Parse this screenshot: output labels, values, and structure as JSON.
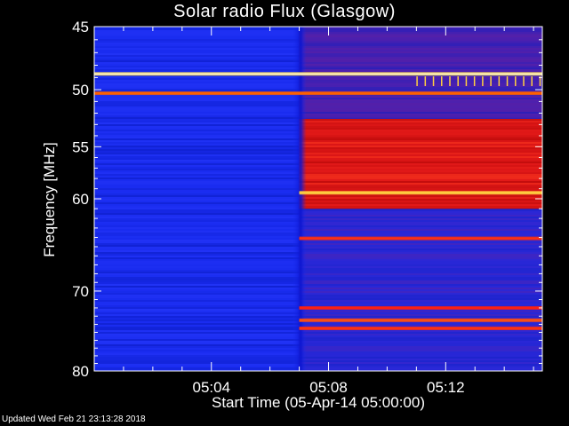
{
  "chart_data": {
    "type": "heatmap",
    "title": "Solar radio Flux (Glasgow)",
    "xlabel": "Start Time (05-Apr-14 05:00:00)",
    "ylabel": "Frequency [MHz]",
    "x_unit": "minutes after 05:00",
    "xlim": [
      0.0,
      15.3
    ],
    "x_ticks": [
      {
        "value": 4,
        "label": "05:04"
      },
      {
        "value": 8,
        "label": "05:08"
      },
      {
        "value": 12,
        "label": "05:12"
      }
    ],
    "ylim": [
      80,
      45
    ],
    "y_scale": "log",
    "y_ticks": [
      {
        "value": 45,
        "label": "45"
      },
      {
        "value": 50,
        "label": "50"
      },
      {
        "value": 55,
        "label": "55"
      },
      {
        "value": 60,
        "label": "60"
      },
      {
        "value": 70,
        "label": "70"
      },
      {
        "value": 80,
        "label": "80"
      }
    ],
    "regions": [
      {
        "x_range": [
          0.0,
          7.0
        ],
        "level": "low",
        "color": "#1a2cf0"
      },
      {
        "x_range": [
          7.0,
          15.3
        ],
        "y_range": [
          52.5,
          61
        ],
        "level": "high",
        "color": "#e01818"
      },
      {
        "x_range": [
          7.0,
          15.3
        ],
        "y_range": [
          45,
          52.5
        ],
        "level": "medium",
        "color": "#4a20b0"
      },
      {
        "x_range": [
          7.0,
          15.3
        ],
        "y_range": [
          61,
          80
        ],
        "level": "low",
        "color": "#2a28d8"
      }
    ],
    "bands": [
      {
        "freq": 48.7,
        "x_range": [
          0.0,
          15.3
        ],
        "color": "#ffe060"
      },
      {
        "freq": 50.3,
        "x_range": [
          0.0,
          15.3
        ],
        "color": "#ff6000"
      },
      {
        "freq": 59.4,
        "x_range": [
          7.0,
          15.3
        ],
        "color": "#ffd040"
      },
      {
        "freq": 64.1,
        "x_range": [
          7.0,
          15.3
        ],
        "color": "#ff3010"
      },
      {
        "freq": 72.0,
        "x_range": [
          7.0,
          15.3
        ],
        "color": "#ff2010"
      },
      {
        "freq": 73.5,
        "x_range": [
          7.0,
          15.3
        ],
        "color": "#ff5010"
      },
      {
        "freq": 74.5,
        "x_range": [
          7.0,
          15.3
        ],
        "color": "#ff3010"
      }
    ],
    "colors": {
      "background": "#000000",
      "axis": "#ffffff",
      "low": "#1a2cf0",
      "high": "#e01818",
      "hot": "#ffe060"
    }
  },
  "footer": "Updated Wed Feb 21 23:13:28 2018"
}
